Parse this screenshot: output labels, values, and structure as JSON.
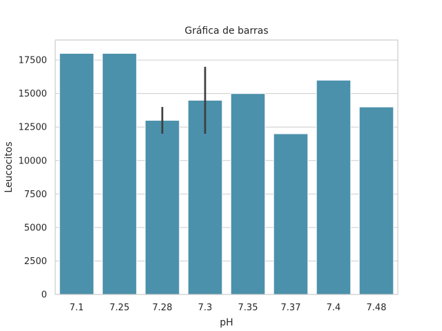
{
  "chart_data": {
    "type": "bar",
    "title": "Gráfica de barras",
    "xlabel": "pH",
    "ylabel": "Leucocitos",
    "categories": [
      "7.1",
      "7.25",
      "7.28",
      "7.3",
      "7.35",
      "7.37",
      "7.4",
      "7.48"
    ],
    "values": [
      18000,
      18000,
      13000,
      14500,
      15000,
      12000,
      16000,
      14000
    ],
    "error_bars": [
      null,
      null,
      [
        12000,
        14000
      ],
      [
        12000,
        17000
      ],
      null,
      null,
      null,
      null
    ],
    "ylim": [
      0,
      19000
    ],
    "yticks": [
      0,
      2500,
      5000,
      7500,
      10000,
      12500,
      15000,
      17500
    ],
    "grid": "horizontal",
    "bar_color": "#4c91ab",
    "error_color": "#3d3d3d",
    "grid_color": "#cccccc",
    "spine_color": "#cccccc"
  }
}
